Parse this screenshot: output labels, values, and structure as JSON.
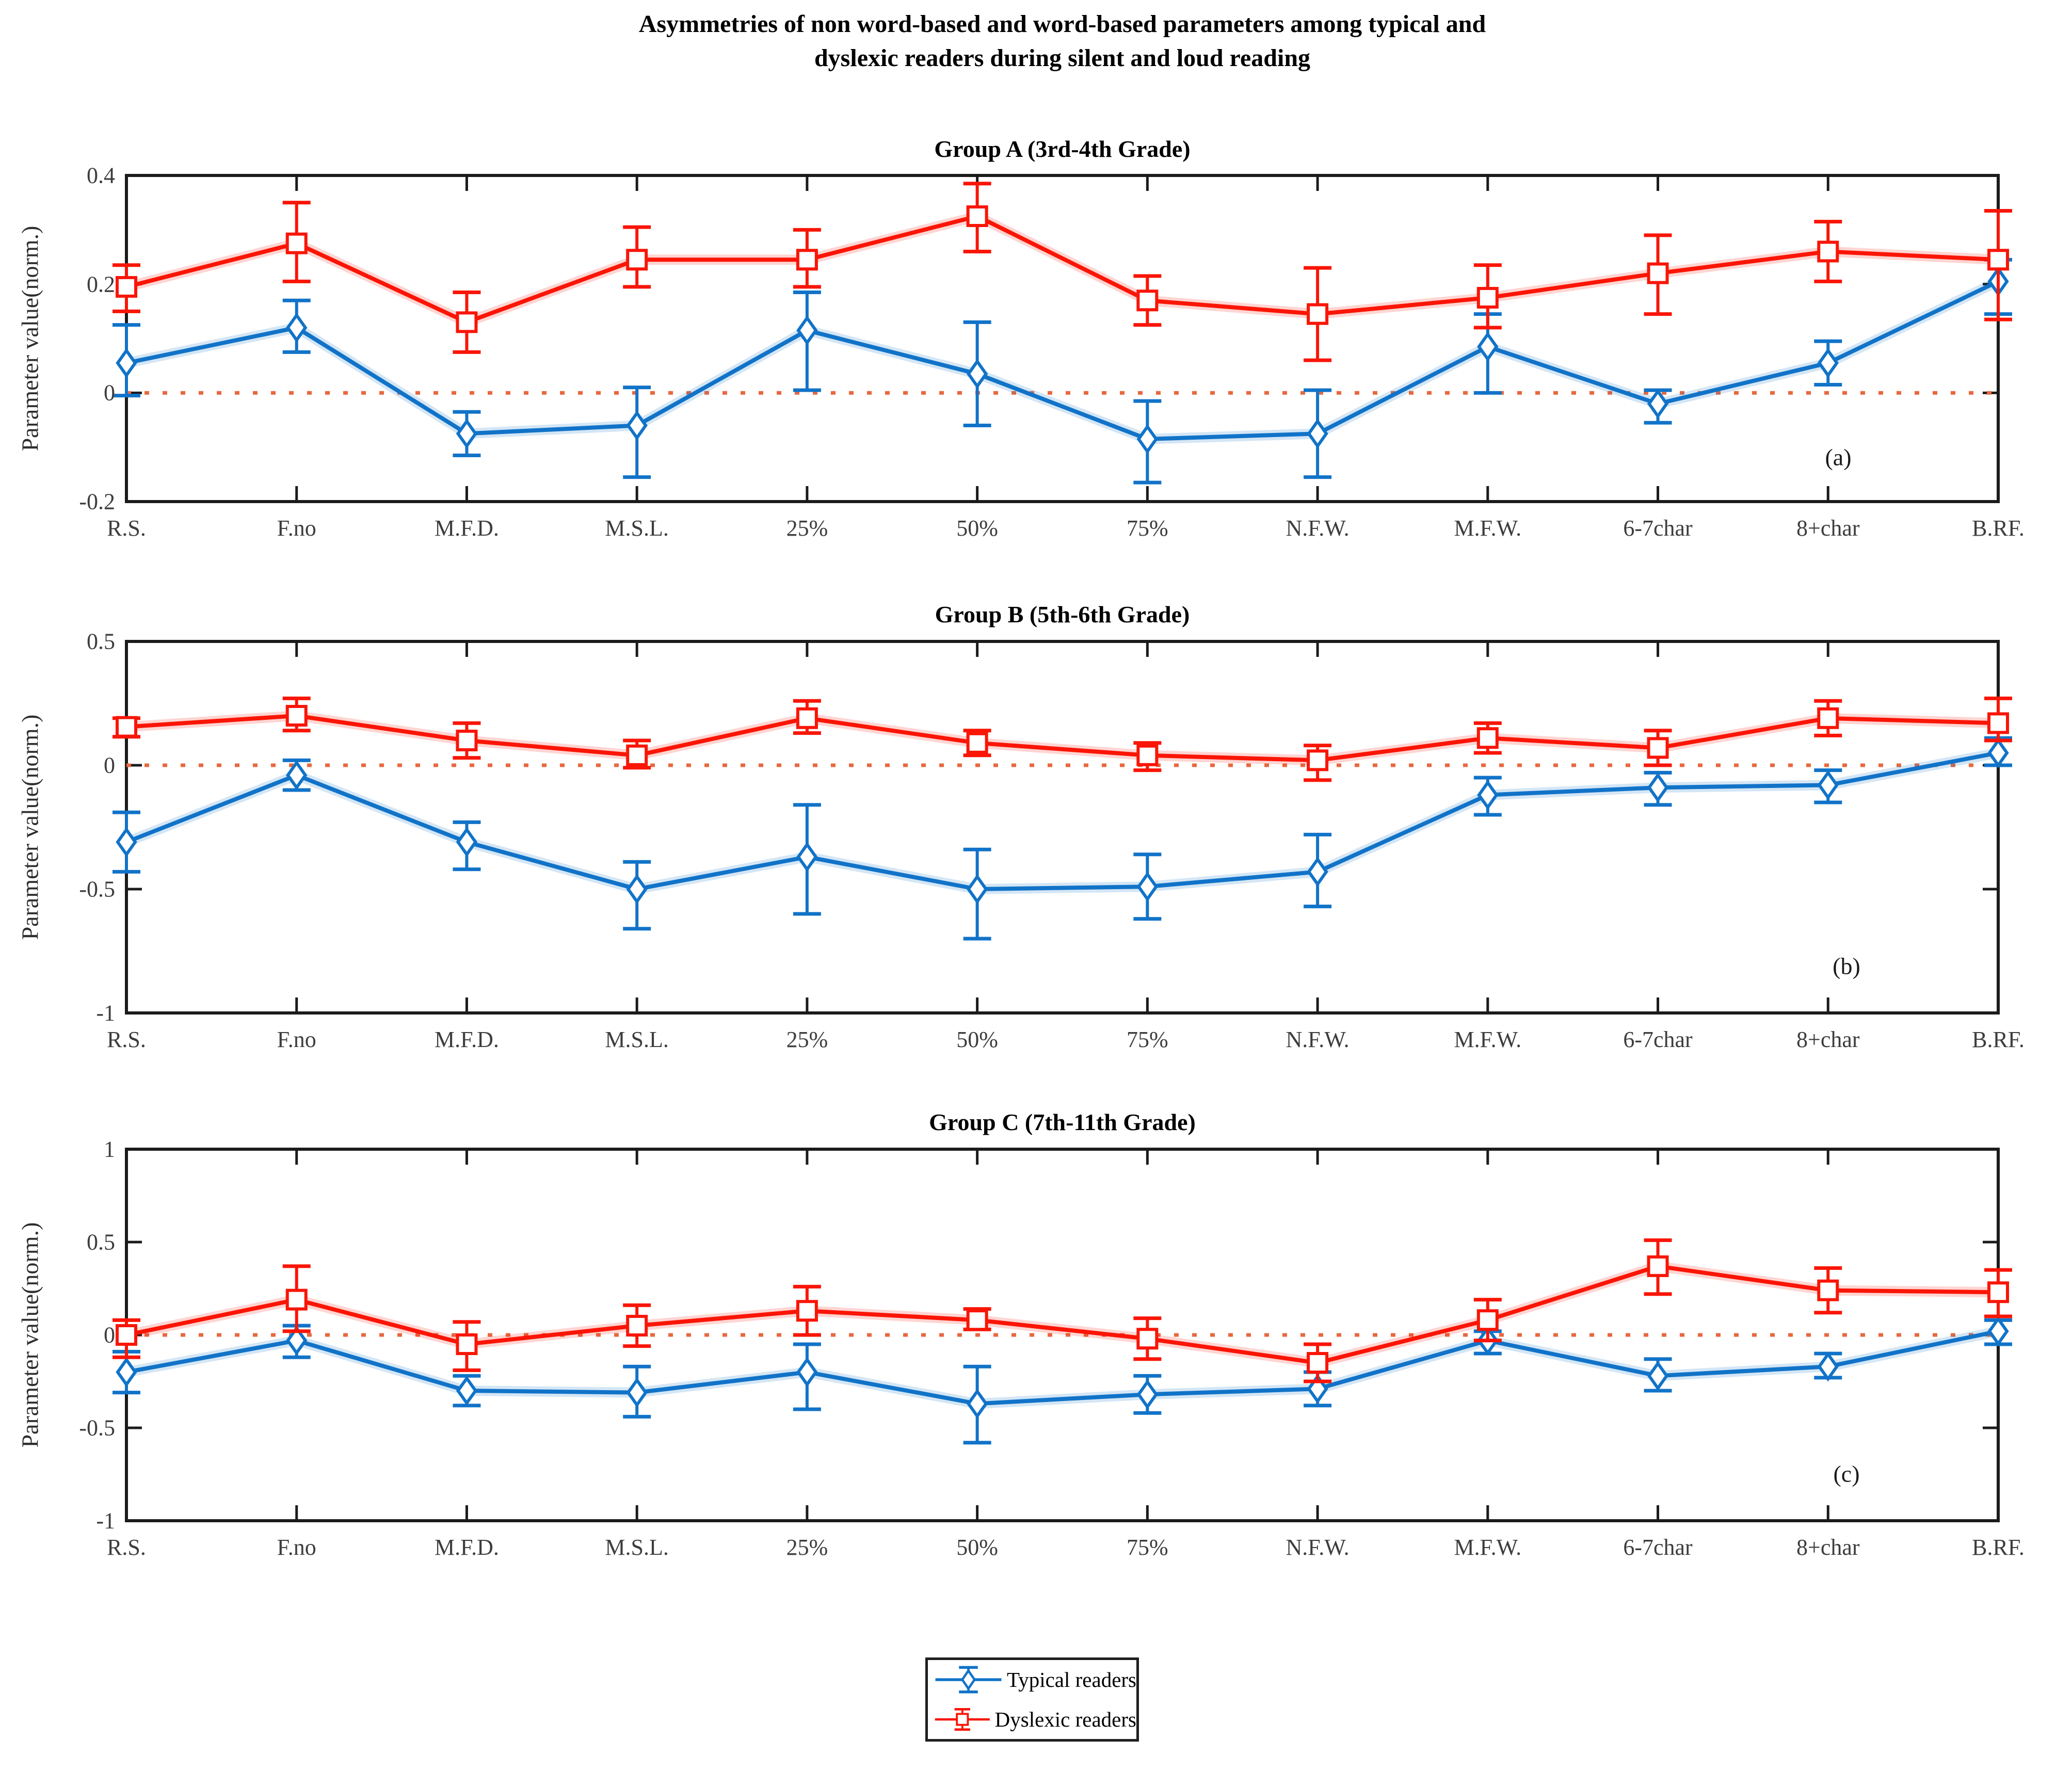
{
  "title": {
    "line1": "Asymmetries of non word-based and word-based parameters among typical and",
    "line2": "dyslexic readers during silent and loud reading"
  },
  "y_axis_label": "Parameter value(norm.)",
  "colors": {
    "typical_blue": "#1173C8",
    "dyslexic_red": "#FA1505",
    "zero_line": "#E8683F",
    "axis": "#1b1b1b",
    "tick_text": "#3d3d3d"
  },
  "legend": {
    "items": [
      {
        "label": "Typical readers",
        "color": "#1173C8",
        "marker": "diamond"
      },
      {
        "label": "Dyslexic readers",
        "color": "#FA1505",
        "marker": "square"
      }
    ]
  },
  "chart_data": [
    {
      "type": "line",
      "title": "Group A (3rd-4th Grade)",
      "panel_label": "(a)",
      "ylabel": "Parameter value(norm.)",
      "categories": [
        "R.S.",
        "F.no",
        "M.F.D.",
        "M.S.L.",
        "25%",
        "50%",
        "75%",
        "N.F.W.",
        "M.F.W.",
        "6-7char",
        "8+char",
        "B.RF."
      ],
      "ylim": [
        -0.2,
        0.4
      ],
      "ytick_values": [
        0.4,
        0.2,
        0,
        -0.2
      ],
      "ytick_labels": [
        "0.4",
        "0.2",
        "0",
        "-0.2"
      ],
      "zero_line": true,
      "legend_position": "none",
      "grid": false,
      "series": [
        {
          "name": "Typical readers",
          "marker": "diamond",
          "values": [
            0.055,
            0.12,
            -0.075,
            -0.06,
            0.115,
            0.035,
            -0.085,
            -0.075,
            0.085,
            -0.02,
            0.055,
            0.205
          ],
          "err_low": [
            -0.005,
            0.075,
            -0.115,
            -0.155,
            0.005,
            -0.06,
            -0.165,
            -0.155,
            0.0,
            -0.055,
            0.015,
            0.145
          ],
          "err_high": [
            0.125,
            0.17,
            -0.035,
            0.01,
            0.185,
            0.13,
            -0.015,
            0.005,
            0.145,
            0.005,
            0.095,
            0.245
          ]
        },
        {
          "name": "Dyslexic readers",
          "marker": "square",
          "values": [
            0.195,
            0.275,
            0.13,
            0.245,
            0.245,
            0.325,
            0.17,
            0.145,
            0.175,
            0.22,
            0.26,
            0.245
          ],
          "err_low": [
            0.15,
            0.205,
            0.075,
            0.195,
            0.195,
            0.26,
            0.125,
            0.06,
            0.12,
            0.145,
            0.205,
            0.135
          ],
          "err_high": [
            0.235,
            0.35,
            0.185,
            0.305,
            0.3,
            0.385,
            0.215,
            0.23,
            0.235,
            0.29,
            0.315,
            0.335
          ]
        }
      ]
    },
    {
      "type": "line",
      "title": "Group B (5th-6th Grade)",
      "panel_label": "(b)",
      "ylabel": "Parameter value(norm.)",
      "categories": [
        "R.S.",
        "F.no",
        "M.F.D.",
        "M.S.L.",
        "25%",
        "50%",
        "75%",
        "N.F.W.",
        "M.F.W.",
        "6-7char",
        "8+char",
        "B.RF."
      ],
      "ylim": [
        -1,
        0.5
      ],
      "ytick_values": [
        0.5,
        0,
        -0.5,
        -1
      ],
      "ytick_labels": [
        "0.5",
        "0",
        "-0.5",
        "-1"
      ],
      "zero_line": true,
      "legend_position": "none",
      "grid": false,
      "series": [
        {
          "name": "Typical readers",
          "marker": "diamond",
          "values": [
            -0.31,
            -0.04,
            -0.31,
            -0.5,
            -0.37,
            -0.5,
            -0.49,
            -0.43,
            -0.12,
            -0.09,
            -0.08,
            0.05
          ],
          "err_low": [
            -0.43,
            -0.1,
            -0.42,
            -0.66,
            -0.6,
            -0.7,
            -0.62,
            -0.57,
            -0.2,
            -0.16,
            -0.15,
            0.0
          ],
          "err_high": [
            -0.19,
            0.02,
            -0.23,
            -0.39,
            -0.16,
            -0.34,
            -0.36,
            -0.28,
            -0.05,
            -0.03,
            -0.02,
            0.11
          ]
        },
        {
          "name": "Dyslexic readers",
          "marker": "square",
          "values": [
            0.155,
            0.2,
            0.1,
            0.04,
            0.19,
            0.09,
            0.04,
            0.02,
            0.11,
            0.07,
            0.19,
            0.17
          ],
          "err_low": [
            0.115,
            0.14,
            0.03,
            -0.01,
            0.13,
            0.04,
            -0.02,
            -0.06,
            0.05,
            0.0,
            0.12,
            0.1
          ],
          "err_high": [
            0.19,
            0.27,
            0.17,
            0.1,
            0.26,
            0.14,
            0.09,
            0.08,
            0.17,
            0.14,
            0.26,
            0.27
          ]
        }
      ]
    },
    {
      "type": "line",
      "title": "Group C (7th-11th Grade)",
      "panel_label": "(c)",
      "ylabel": "Parameter value(norm.)",
      "categories": [
        "R.S.",
        "F.no",
        "M.F.D.",
        "M.S.L.",
        "25%",
        "50%",
        "75%",
        "N.F.W.",
        "M.F.W.",
        "6-7char",
        "8+char",
        "B.RF."
      ],
      "ylim": [
        -1,
        1
      ],
      "ytick_values": [
        1,
        0.5,
        0,
        -0.5,
        -1
      ],
      "ytick_labels": [
        "1",
        "0.5",
        "0",
        "-0.5",
        "-1"
      ],
      "zero_line": true,
      "legend_position": "below",
      "grid": false,
      "series": [
        {
          "name": "Typical readers",
          "marker": "diamond",
          "values": [
            -0.2,
            -0.03,
            -0.3,
            -0.31,
            -0.2,
            -0.37,
            -0.32,
            -0.29,
            -0.03,
            -0.22,
            -0.17,
            0.02
          ],
          "err_low": [
            -0.31,
            -0.12,
            -0.38,
            -0.44,
            -0.4,
            -0.58,
            -0.42,
            -0.38,
            -0.1,
            -0.3,
            -0.23,
            -0.05
          ],
          "err_high": [
            -0.09,
            0.05,
            -0.22,
            -0.17,
            -0.05,
            -0.17,
            -0.22,
            -0.2,
            0.02,
            -0.13,
            -0.1,
            0.08
          ]
        },
        {
          "name": "Dyslexic readers",
          "marker": "square",
          "values": [
            0.0,
            0.19,
            -0.05,
            0.05,
            0.13,
            0.08,
            -0.02,
            -0.15,
            0.08,
            0.37,
            0.24,
            0.23
          ],
          "err_low": [
            -0.12,
            0.02,
            -0.19,
            -0.06,
            0.0,
            0.03,
            -0.13,
            -0.25,
            -0.03,
            0.22,
            0.12,
            0.1
          ],
          "err_high": [
            0.08,
            0.37,
            0.07,
            0.16,
            0.26,
            0.14,
            0.09,
            -0.05,
            0.19,
            0.51,
            0.36,
            0.35
          ]
        }
      ]
    }
  ]
}
